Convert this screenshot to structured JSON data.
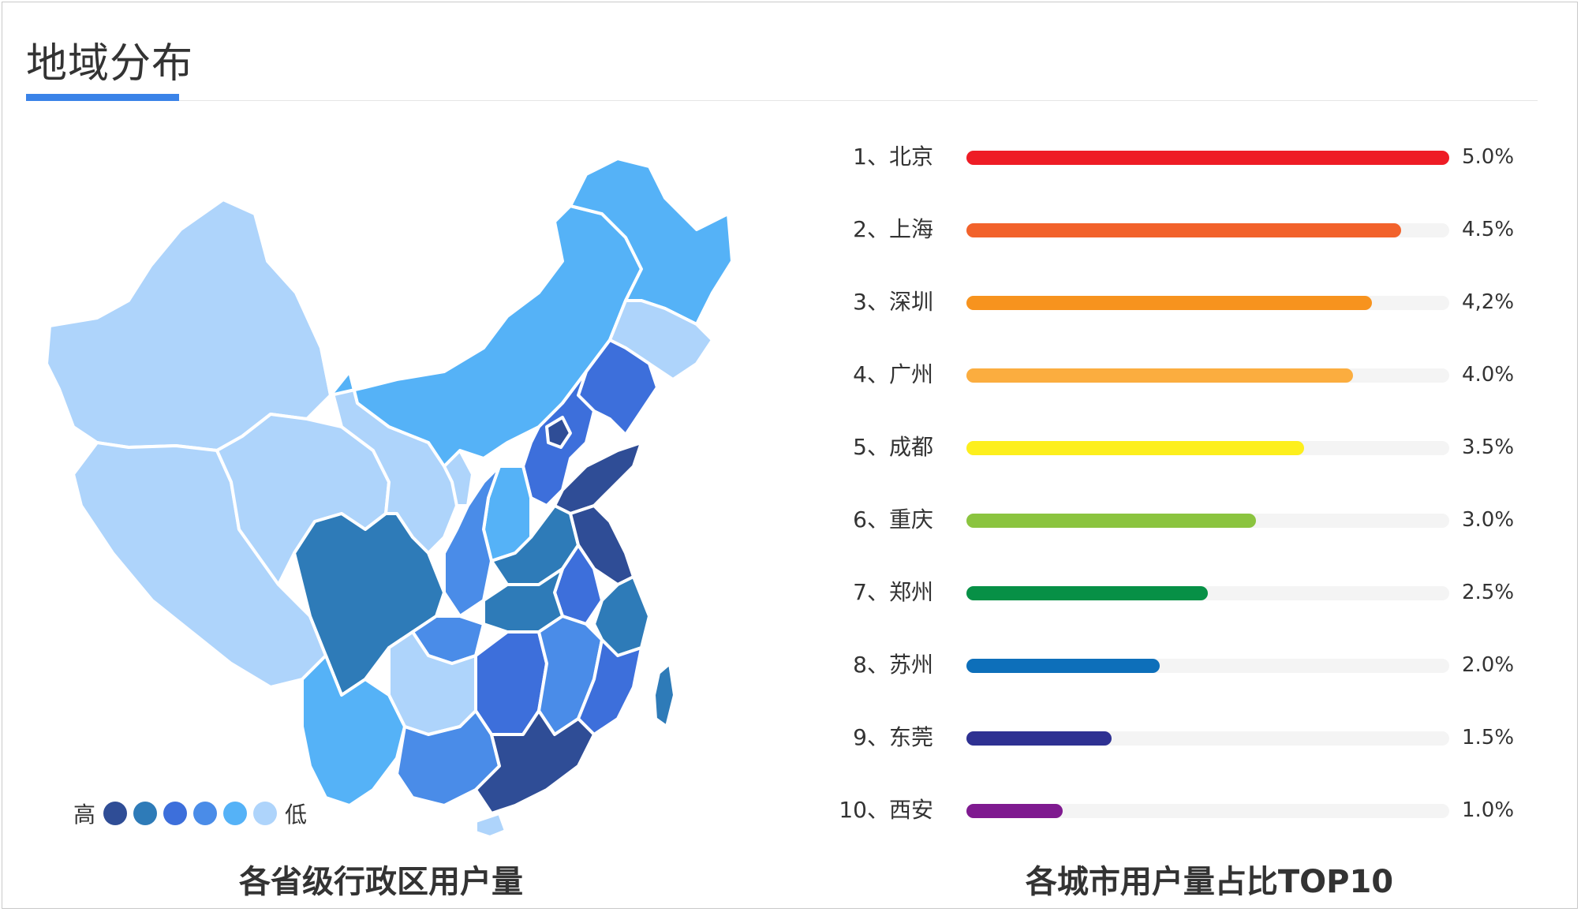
{
  "header": {
    "title": "地域分布"
  },
  "map": {
    "caption": "各省级行政区用户量",
    "legend": {
      "high_label": "高",
      "low_label": "低",
      "colors": [
        "#2f4d96",
        "#2e7bb8",
        "#3d6fdb",
        "#4a8ce8",
        "#55b2f7",
        "#aed4fb"
      ]
    }
  },
  "chart_data": {
    "type": "bar",
    "orientation": "horizontal",
    "title": "各城市用户量占比TOP10",
    "categories": [
      "1、北京",
      "2、上海",
      "3、深圳",
      "4、广州",
      "5、成都",
      "6、重庆",
      "7、郑州",
      "8、苏州",
      "9、东莞",
      "10、西安"
    ],
    "values": [
      5.0,
      4.5,
      4.2,
      4.0,
      3.5,
      3.0,
      2.5,
      2.0,
      1.5,
      1.0
    ],
    "value_labels": [
      "5.0%",
      "4.5%",
      "4,2%",
      "4.0%",
      "3.5%",
      "3.0%",
      "2.5%",
      "2.0%",
      "1.5%",
      "1.0%"
    ],
    "xlim": [
      0,
      5.0
    ],
    "colors": [
      "#ee1c25",
      "#f2622b",
      "#f7931e",
      "#fbad3f",
      "#fdef1d",
      "#8bc43f",
      "#079046",
      "#0d6fba",
      "#2e3192",
      "#7f1a90"
    ],
    "grid": false
  }
}
